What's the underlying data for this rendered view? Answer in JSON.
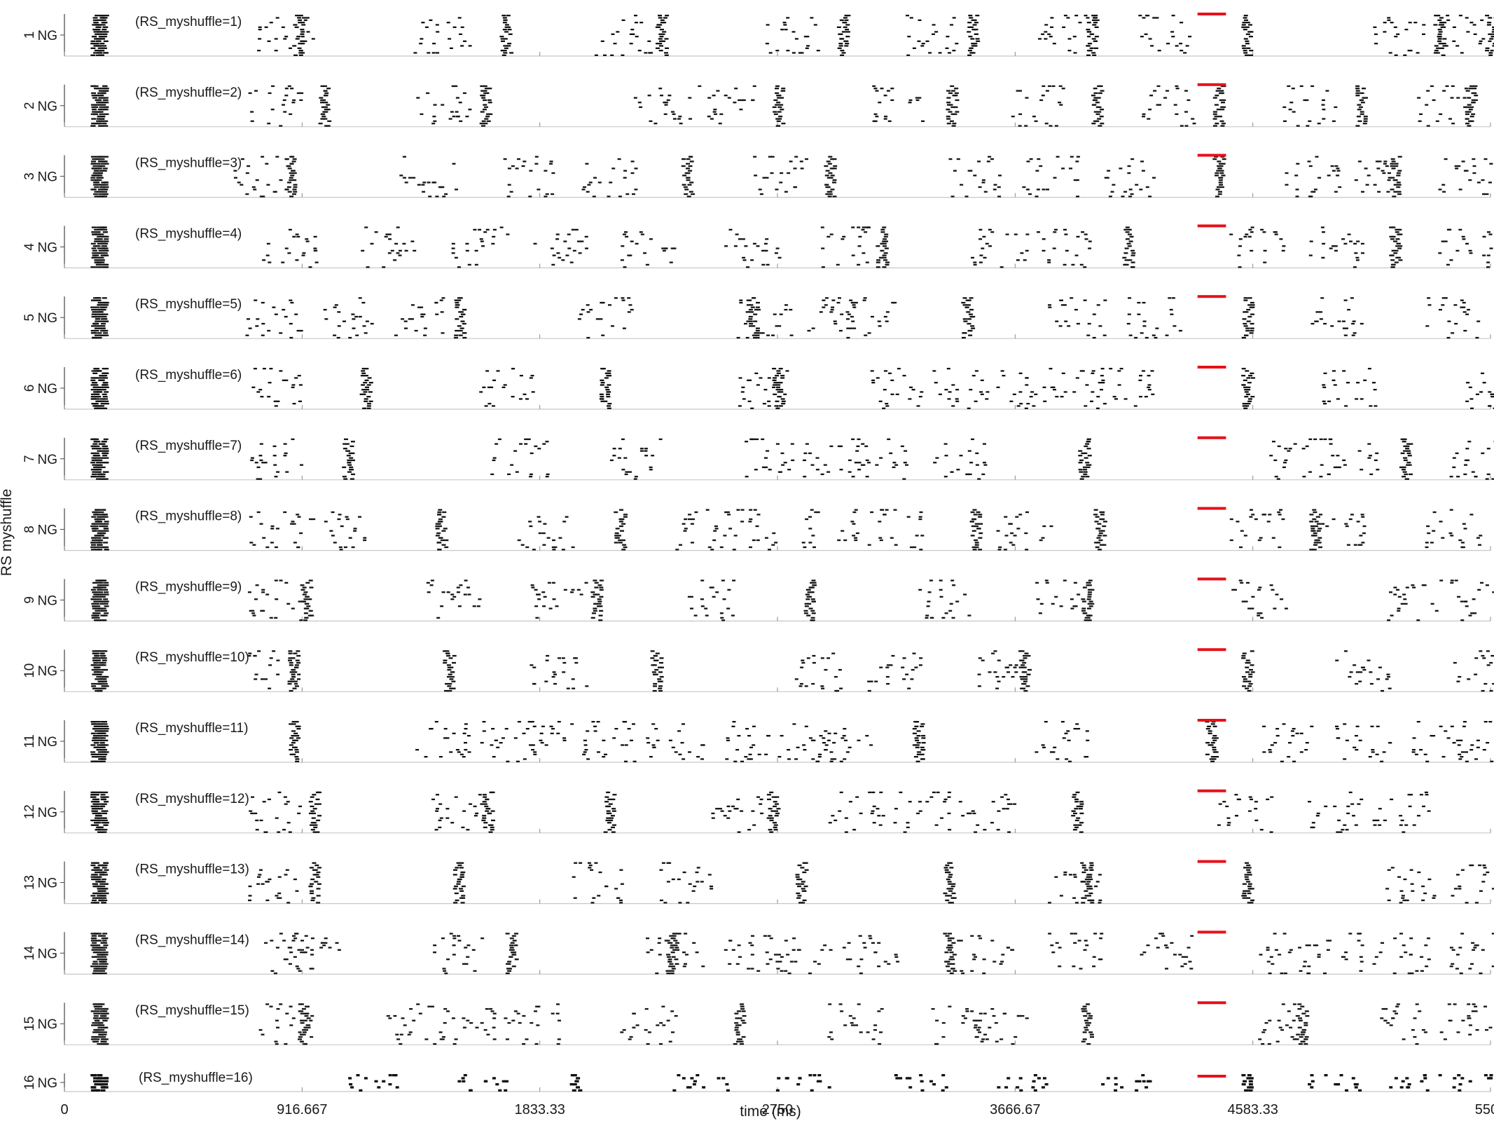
{
  "figure": {
    "ylabel": "RS myshuffle",
    "xlabel": "time (ms)",
    "xlim": [
      0,
      5500
    ],
    "xticks": [
      0,
      916.667,
      1833.33,
      2750,
      3666.67,
      4583.33,
      5500
    ],
    "xtick_labels": [
      "0",
      "916.667",
      "1833.33",
      "2750",
      "3666.67",
      "4583.33",
      "5500"
    ],
    "row_tick_label": "NG",
    "stimulus_color": "#e8101a",
    "spike_color": "#111111"
  },
  "chart_data": {
    "type": "scatter",
    "description_kind": "raster",
    "x_unit": "ms",
    "stimulus_window_ms": [
      4370,
      4480
    ],
    "initial_burst_ms": [
      100,
      170
    ],
    "panels": [
      {
        "index": 1,
        "number_label": "1",
        "title": "(RS_myshuffle=1)",
        "bursts": [
          900,
          1700,
          2300,
          3000,
          3500,
          3960,
          4560,
          5300,
          5500
        ],
        "scatter_centers": [
          850,
          1450,
          2150,
          2800,
          3350,
          3850,
          4250,
          5150,
          5400
        ]
      },
      {
        "index": 2,
        "number_label": "2",
        "title": "(RS_myshuffle=2)",
        "bursts": [
          1000,
          1620,
          2750,
          3420,
          3980,
          4450,
          5000,
          5420
        ],
        "scatter_centers": [
          800,
          1450,
          2300,
          2550,
          3200,
          3750,
          4250,
          4800,
          5300
        ]
      },
      {
        "index": 3,
        "number_label": "3",
        "title": "(RS_myshuffle=3)",
        "bursts": [
          870,
          2400,
          2950,
          4450,
          5130
        ],
        "scatter_centers": [
          750,
          1400,
          1800,
          2100,
          2750,
          3500,
          3800,
          4100,
          4800,
          5000,
          5400
        ]
      },
      {
        "index": 4,
        "number_label": "4",
        "title": "(RS_myshuffle=4)",
        "bursts": [
          3150,
          4100,
          5130
        ],
        "scatter_centers": [
          860,
          1250,
          1600,
          1900,
          2250,
          2650,
          3000,
          3600,
          3850,
          4600,
          4900,
          5400
        ]
      },
      {
        "index": 5,
        "number_label": "5",
        "title": "(RS_myshuffle=5)",
        "bursts": [
          1520,
          2650,
          3480,
          4560
        ],
        "scatter_centers": [
          800,
          1100,
          1350,
          2080,
          2700,
          2950,
          3100,
          3900,
          4200,
          4900,
          5350
        ]
      },
      {
        "index": 6,
        "number_label": "6",
        "title": "(RS_myshuffle=6)",
        "bursts": [
          1160,
          2080,
          2750,
          4560
        ],
        "scatter_centers": [
          830,
          1700,
          2700,
          3200,
          3450,
          3700,
          3900,
          4100,
          4950,
          5500
        ]
      },
      {
        "index": 7,
        "number_label": "7",
        "title": "(RS_myshuffle=7)",
        "bursts": [
          1090,
          3930,
          5170
        ],
        "scatter_centers": [
          800,
          1750,
          2200,
          2700,
          2950,
          3150,
          3450,
          4750,
          4950,
          5450
        ]
      },
      {
        "index": 8,
        "number_label": "8",
        "title": "(RS_myshuffle=8)",
        "bursts": [
          1450,
          2140,
          3510,
          3990,
          4820
        ],
        "scatter_centers": [
          800,
          1050,
          1850,
          2450,
          2650,
          2950,
          3200,
          3700,
          4600,
          4900,
          5350
        ]
      },
      {
        "index": 9,
        "number_label": "9",
        "title": "(RS_myshuffle=9)",
        "bursts": [
          930,
          2050,
          2870,
          3940
        ],
        "scatter_centers": [
          800,
          1500,
          1900,
          2500,
          3400,
          3850,
          4600,
          5200,
          5450
        ]
      },
      {
        "index": 10,
        "number_label": "10",
        "title": "(RS_myshuffle=10)",
        "bursts": [
          880,
          1480,
          2280,
          3700,
          4560
        ],
        "scatter_centers": [
          800,
          1900,
          2900,
          3200,
          3600,
          5000,
          5450
        ]
      },
      {
        "index": 11,
        "number_label": "11",
        "title": "(RS_myshuffle=11)",
        "bursts": [
          880,
          3290,
          4420
        ],
        "scatter_centers": [
          1450,
          1700,
          1900,
          2100,
          2350,
          2650,
          2850,
          3000,
          3850,
          4700,
          5000,
          5300,
          5450
        ]
      },
      {
        "index": 12,
        "number_label": "12",
        "title": "(RS_myshuffle=12)",
        "bursts": [
          960,
          1630,
          2100,
          2730,
          3900
        ],
        "scatter_centers": [
          800,
          1500,
          2600,
          3050,
          3300,
          3550,
          4550,
          4900,
          5150
        ]
      },
      {
        "index": 13,
        "number_label": "13",
        "title": "(RS_myshuffle=13)",
        "bursts": [
          960,
          1520,
          2840,
          3410,
          3940,
          4560
        ],
        "scatter_centers": [
          800,
          2050,
          2400,
          3900,
          5200,
          5450
        ]
      },
      {
        "index": 14,
        "number_label": "14",
        "title": "(RS_myshuffle=14)",
        "bursts": [
          1720,
          2340,
          3410
        ],
        "scatter_centers": [
          850,
          950,
          1500,
          2350,
          2650,
          2850,
          3100,
          3550,
          3900,
          4250,
          4700,
          4900,
          5150,
          5450
        ]
      },
      {
        "index": 15,
        "number_label": "15",
        "title": "(RS_myshuffle=15)",
        "bursts": [
          920,
          2600,
          3940,
          4770
        ],
        "scatter_centers": [
          850,
          1350,
          1550,
          1800,
          2250,
          3050,
          3450,
          3600,
          4700,
          5150,
          5400
        ]
      },
      {
        "index": 16,
        "number_label": "16",
        "title": "(RS_myshuffle=16)",
        "bursts": [
          1970,
          4560
        ],
        "scatter_centers": [
          1200,
          1600,
          2450,
          2850,
          3300,
          3700,
          4100,
          4900,
          5200,
          5450
        ]
      }
    ]
  }
}
